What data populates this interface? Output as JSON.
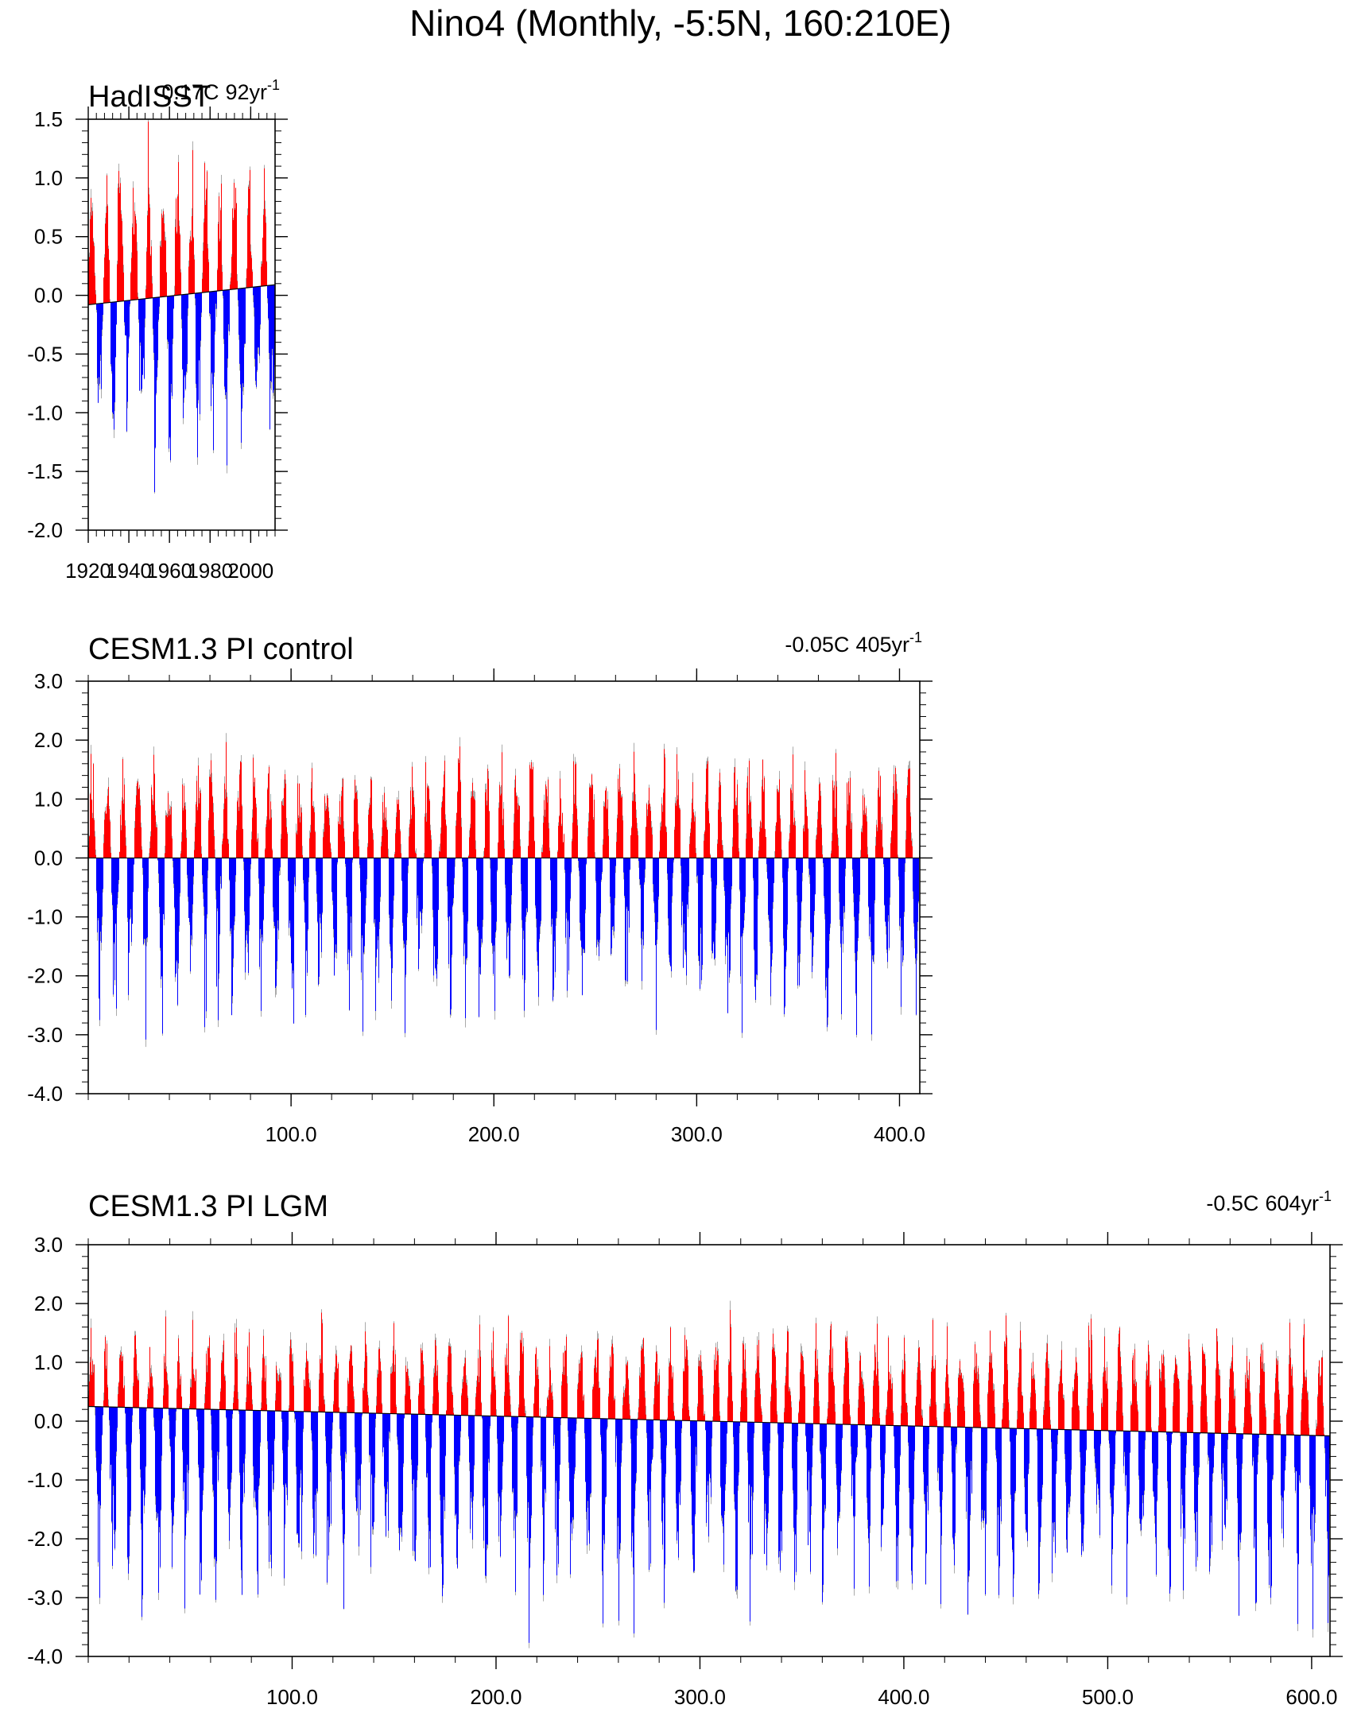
{
  "title": "Nino4 (Monthly, -5:5N, 160:210E)",
  "colors": {
    "positive": "#ff0000",
    "negative": "#0000ff",
    "envelope": "#aaaaaa",
    "axis": "#000000"
  },
  "chart_data": [
    {
      "type": "bar",
      "title": "HadISST",
      "trend_label": {
        "value": "0.17C",
        "period": "92yr",
        "superscript": "-1"
      },
      "xlim": [
        1920,
        2012
      ],
      "ylim": [
        -2.0,
        1.5
      ],
      "y_ticks": [
        "1.5",
        "1.0",
        "0.5",
        "0.0",
        "-0.5",
        "-1.0",
        "-1.5",
        "-2.0"
      ],
      "x_ticks": [
        "1920",
        "1940",
        "1960",
        "1980",
        "2000"
      ],
      "trend_line": {
        "start": -0.08,
        "end": 0.09
      },
      "max_pos": 1.45,
      "min_neg": -1.75,
      "grid": false
    },
    {
      "type": "bar",
      "title": "CESM1.3 PI control",
      "trend_label": {
        "value": "-0.05C",
        "period": "405yr",
        "superscript": "-1"
      },
      "xlim": [
        0,
        410
      ],
      "ylim": [
        -4.0,
        3.0
      ],
      "y_ticks": [
        "3.0",
        "2.0",
        "1.0",
        "0.0",
        "-1.0",
        "-2.0",
        "-3.0",
        "-4.0"
      ],
      "x_ticks": [
        "100.0",
        "200.0",
        "300.0",
        "400.0"
      ],
      "trend_line": {
        "start": 0.0,
        "end": 0.0
      },
      "max_pos": 2.1,
      "min_neg": -3.35,
      "grid": false
    },
    {
      "type": "bar",
      "title": "CESM1.3 PI LGM",
      "trend_label": {
        "value": "-0.5C",
        "period": "604yr",
        "superscript": "-1"
      },
      "xlim": [
        0,
        609
      ],
      "ylim": [
        -4.0,
        3.0
      ],
      "y_ticks": [
        "3.0",
        "2.0",
        "1.0",
        "0.0",
        "-1.0",
        "-2.0",
        "-3.0",
        "-4.0"
      ],
      "x_ticks": [
        "100.0",
        "200.0",
        "300.0",
        "400.0",
        "500.0",
        "600.0"
      ],
      "trend_line": {
        "start": 0.25,
        "end": -0.25
      },
      "max_pos": 1.95,
      "min_neg": -3.8,
      "grid": false
    }
  ]
}
